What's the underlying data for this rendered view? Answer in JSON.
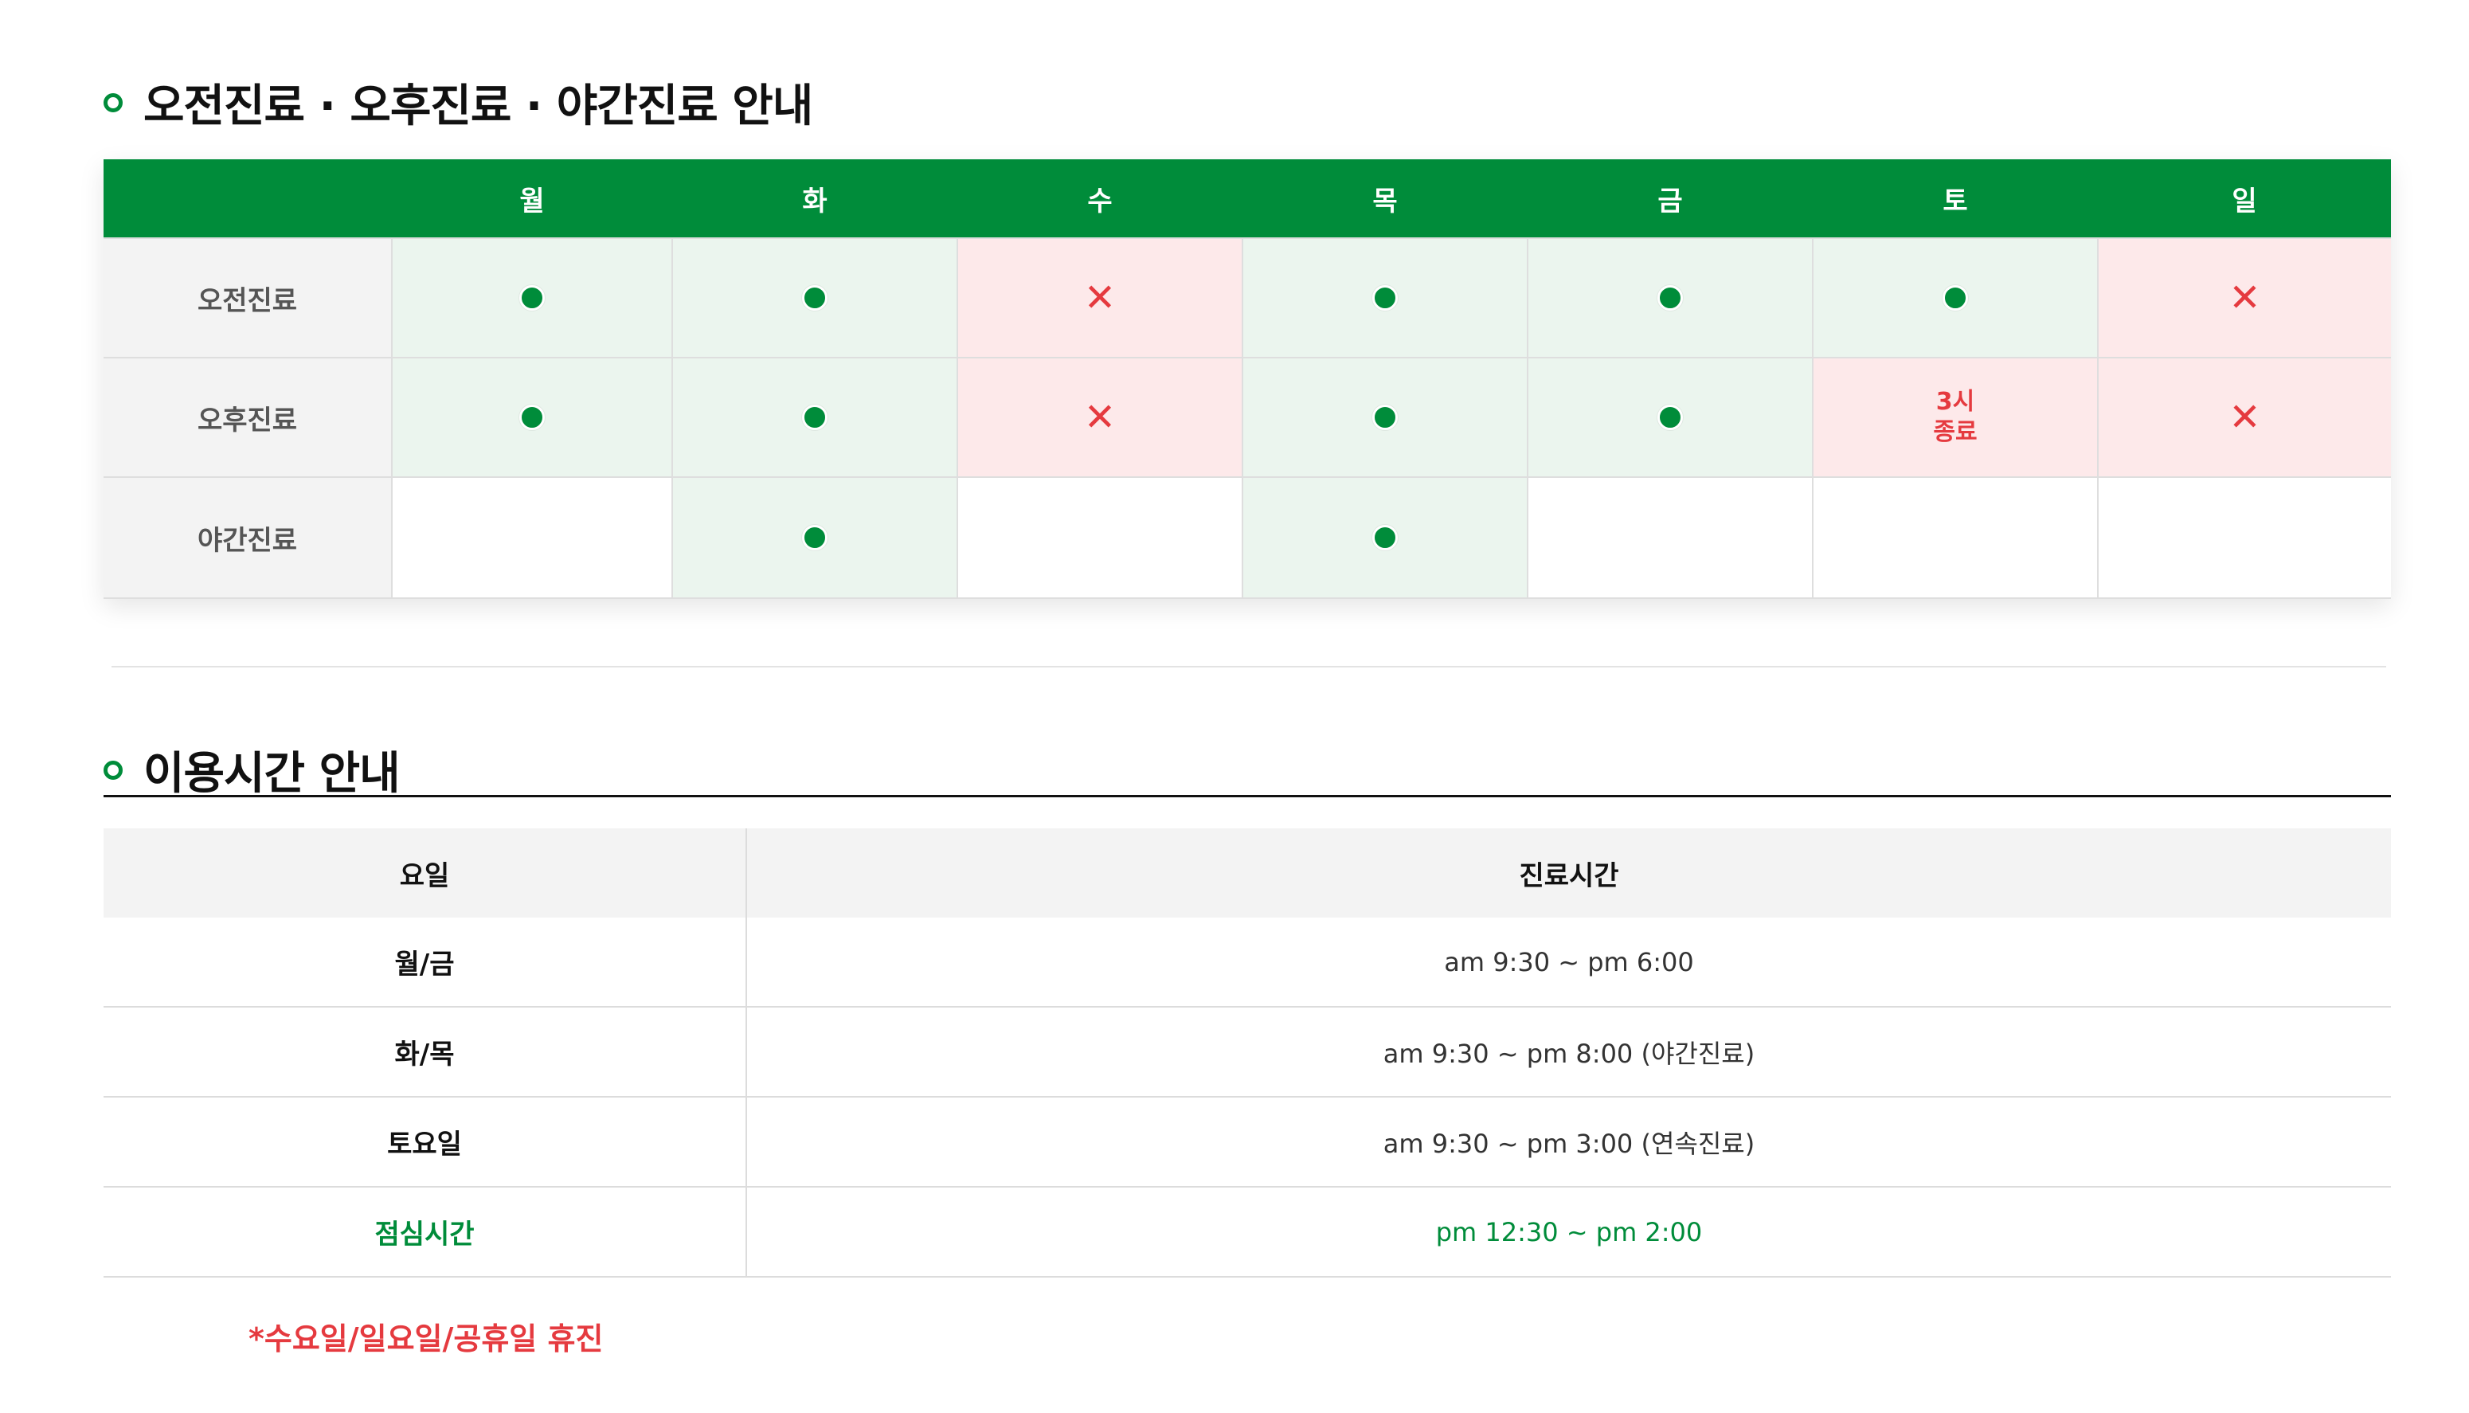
{
  "schedule": {
    "title": "오전진료 · 오후진료 · 야간진료 안내",
    "days": [
      "월",
      "화",
      "수",
      "목",
      "금",
      "토",
      "일"
    ],
    "rows": [
      {
        "label": "오전진료",
        "cells": [
          {
            "status": "open"
          },
          {
            "status": "open"
          },
          {
            "status": "closed"
          },
          {
            "status": "open"
          },
          {
            "status": "open"
          },
          {
            "status": "open"
          },
          {
            "status": "closed"
          }
        ]
      },
      {
        "label": "오후진료",
        "cells": [
          {
            "status": "open"
          },
          {
            "status": "open"
          },
          {
            "status": "closed"
          },
          {
            "status": "open"
          },
          {
            "status": "open"
          },
          {
            "status": "note",
            "text": "3시\n종료"
          },
          {
            "status": "closed"
          }
        ]
      },
      {
        "label": "야간진료",
        "cells": [
          {
            "status": "empty"
          },
          {
            "status": "open"
          },
          {
            "status": "empty"
          },
          {
            "status": "open"
          },
          {
            "status": "empty"
          },
          {
            "status": "empty"
          },
          {
            "status": "empty"
          }
        ]
      }
    ]
  },
  "hours": {
    "title": "이용시간 안내",
    "headers": {
      "day": "요일",
      "time": "진료시간"
    },
    "rows": [
      {
        "day": "월/금",
        "time": "am 9:30 ~ pm 6:00",
        "highlight": false
      },
      {
        "day": "화/목",
        "time": "am 9:30 ~ pm 8:00 (야간진료)",
        "highlight": false
      },
      {
        "day": "토요일",
        "time": "am 9:30 ~ pm 3:00 (연속진료)",
        "highlight": false
      },
      {
        "day": "점심시간",
        "time": "pm 12:30 ~ pm 2:00",
        "highlight": true
      }
    ],
    "closed_note": "*수요일/일요일/공휴일 휴진"
  },
  "icons": {
    "open": "green-dot-icon",
    "closed": "red-x-icon",
    "title_marker": "green-ring-icon"
  },
  "colors": {
    "brand_green": "#008c3a",
    "closed_red": "#e53a3f",
    "open_cell_bg": "#ebf5ee",
    "closed_cell_bg": "#fde9ea"
  }
}
